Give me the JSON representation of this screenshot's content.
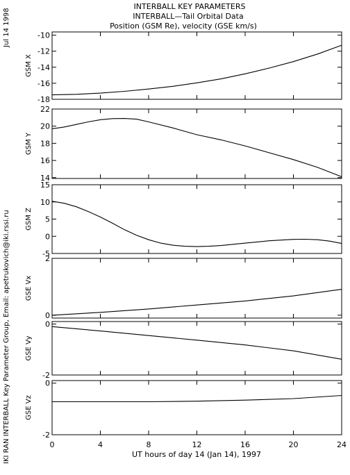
{
  "header": {
    "line1": "INTERBALL KEY PARAMETERS",
    "line2": "INTERBALL—Tail Orbital Data",
    "line3": "Position (GSM Re), velocity (GSE km/s)"
  },
  "side": {
    "date": "Jul 14 1998",
    "credit": "IKI RAN INTERBALL Key Parameter Group, Email: apetrukovich@iki.rssi.ru"
  },
  "chart_data": {
    "type": "line",
    "xlabel": "UT hours of day  14 (Jan 14), 1997",
    "xlim": [
      0,
      24
    ],
    "xticks": [
      0,
      4,
      8,
      12,
      16,
      20,
      24
    ],
    "panels": [
      {
        "name": "GSM X",
        "ylim": [
          -18,
          -9.6
        ],
        "yticks": [
          -18,
          -16,
          -14,
          -12,
          -10
        ],
        "series": {
          "x": [
            0,
            2,
            4,
            6,
            8,
            10,
            12,
            14,
            16,
            18,
            20,
            22,
            24
          ],
          "y": [
            -17.45,
            -17.38,
            -17.23,
            -17.0,
            -16.72,
            -16.38,
            -15.95,
            -15.45,
            -14.82,
            -14.1,
            -13.3,
            -12.35,
            -11.25
          ]
        }
      },
      {
        "name": "GSM Y",
        "ylim": [
          13.9,
          22
        ],
        "yticks": [
          14,
          16,
          18,
          20,
          22
        ],
        "series": {
          "x": [
            0,
            1,
            2,
            3,
            4,
            5,
            6,
            7,
            8,
            10,
            12,
            14,
            16,
            18,
            20,
            22,
            24
          ],
          "y": [
            19.7,
            19.9,
            20.2,
            20.5,
            20.75,
            20.88,
            20.9,
            20.82,
            20.5,
            19.8,
            19.0,
            18.4,
            17.7,
            16.9,
            16.1,
            15.2,
            14.1
          ]
        }
      },
      {
        "name": "GSM Z",
        "ylim": [
          -5,
          15
        ],
        "yticks": [
          -5,
          0,
          5,
          10,
          15
        ],
        "series": {
          "x": [
            0,
            1,
            2,
            3,
            4,
            5,
            6,
            7,
            8,
            9,
            10,
            11,
            12,
            13,
            14,
            16,
            18,
            20,
            21,
            22,
            23,
            24
          ],
          "y": [
            10.2,
            9.6,
            8.6,
            7.2,
            5.6,
            3.8,
            1.9,
            0.3,
            -1.0,
            -2.0,
            -2.6,
            -2.9,
            -3.0,
            -2.9,
            -2.7,
            -2.0,
            -1.3,
            -0.9,
            -0.85,
            -1.0,
            -1.4,
            -2.1
          ]
        }
      },
      {
        "name": "GSE Vx",
        "ylim": [
          -0.1,
          2
        ],
        "yticks": [
          0,
          2
        ],
        "series": {
          "x": [
            0,
            4,
            8,
            12,
            16,
            20,
            24
          ],
          "y": [
            0.0,
            0.1,
            0.22,
            0.36,
            0.5,
            0.68,
            0.91
          ]
        }
      },
      {
        "name": "GSE Vy",
        "ylim": [
          -2,
          0.1
        ],
        "yticks": [
          -2,
          0
        ],
        "series": {
          "x": [
            0,
            4,
            8,
            12,
            16,
            20,
            24
          ],
          "y": [
            -0.1,
            -0.27,
            -0.45,
            -0.63,
            -0.82,
            -1.05,
            -1.38
          ]
        }
      },
      {
        "name": "GSE Vz",
        "ylim": [
          -2,
          0.1
        ],
        "yticks": [
          -2,
          0
        ],
        "series": {
          "x": [
            0,
            4,
            8,
            12,
            16,
            20,
            24
          ],
          "y": [
            -0.72,
            -0.72,
            -0.72,
            -0.7,
            -0.66,
            -0.6,
            -0.48
          ]
        }
      }
    ]
  }
}
